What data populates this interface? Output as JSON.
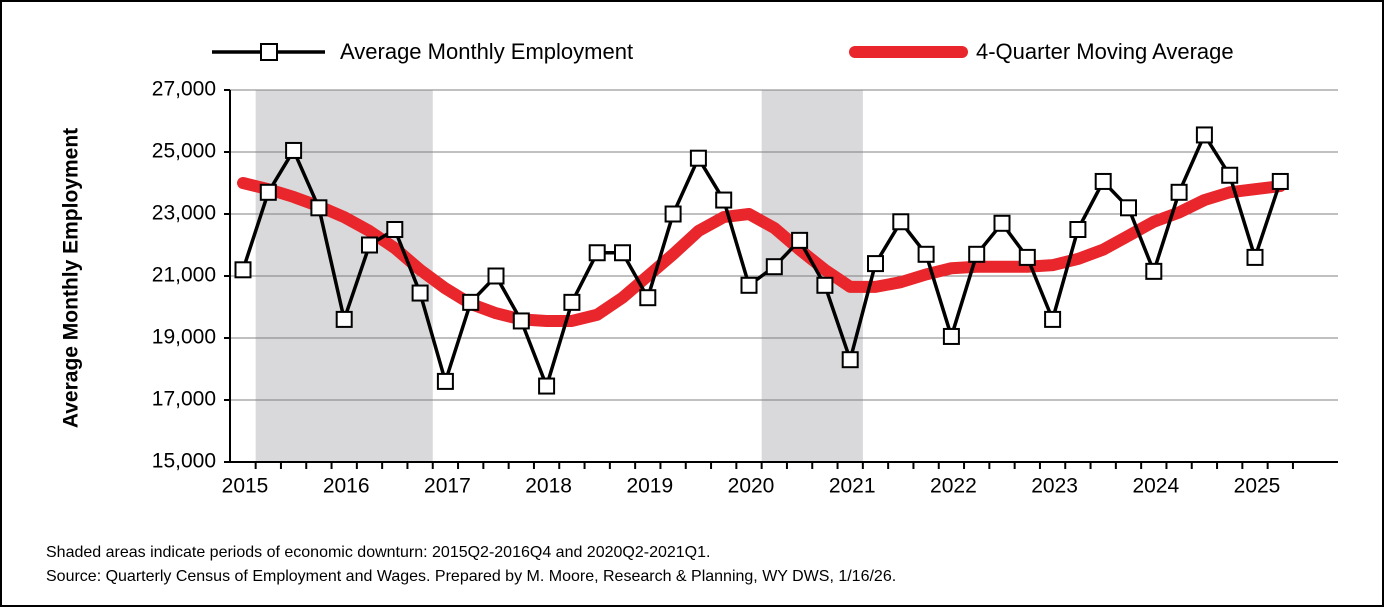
{
  "chart_data": {
    "type": "line",
    "y_label": "Average Monthly Employment",
    "categories": [
      "2015",
      null,
      null,
      null,
      "2016",
      null,
      null,
      null,
      "2017",
      null,
      null,
      null,
      "2018",
      null,
      null,
      null,
      "2019",
      null,
      null,
      null,
      "2020",
      null,
      null,
      null,
      "2021",
      null,
      null,
      null,
      "2022",
      null,
      null,
      null,
      "2023",
      null,
      null,
      null,
      "2024",
      null,
      null,
      null,
      "2025",
      null
    ],
    "series": [
      {
        "name": "Average Monthly Employment",
        "color": "#000000",
        "marker": "square",
        "values": [
          21200,
          23700,
          25050,
          23200,
          19600,
          22000,
          22500,
          20450,
          17600,
          20150,
          21000,
          19550,
          17450,
          20150,
          21750,
          21750,
          20300,
          23000,
          24800,
          23450,
          20700,
          21300,
          22150,
          20700,
          18300,
          21400,
          22750,
          21700,
          19050,
          21700,
          22700,
          21600,
          19600,
          22500,
          24050,
          23200,
          21150,
          23700,
          25550,
          24250,
          21600,
          24050
        ]
      },
      {
        "name": "4-Quarter Moving Average",
        "color": "#e8262b",
        "values": [
          24000,
          23800,
          23550,
          23250,
          22900,
          22450,
          21900,
          21200,
          20600,
          20100,
          19800,
          19600,
          19550,
          19550,
          19750,
          20300,
          21000,
          21700,
          22450,
          22900,
          23000,
          22550,
          21850,
          21200,
          20650,
          20650,
          20800,
          21050,
          21250,
          21300,
          21300,
          21300,
          21350,
          21550,
          21850,
          22300,
          22750,
          23050,
          23450,
          23700,
          23800,
          23900
        ]
      }
    ],
    "ylim": [
      15000,
      27000
    ],
    "yticks": [
      {
        "value": 15000,
        "label": "15,000"
      },
      {
        "value": 17000,
        "label": "17,000"
      },
      {
        "value": 19000,
        "label": "19,000"
      },
      {
        "value": 21000,
        "label": "21,000"
      },
      {
        "value": 23000,
        "label": "23,000"
      },
      {
        "value": 25000,
        "label": "25,000"
      },
      {
        "value": 27000,
        "label": "27,000"
      }
    ],
    "grid": true,
    "shaded_ranges": [
      [
        1,
        7
      ],
      [
        21,
        24
      ]
    ],
    "notes": [
      "Shaded areas indicate periods of economic downturn: 2015Q2-2016Q4 and 2020Q2-2021Q1.",
      "Source: Quarterly Census of Employment and Wages. Prepared by M. Moore, Research & Planning, WY DWS, 1/16/26."
    ]
  }
}
